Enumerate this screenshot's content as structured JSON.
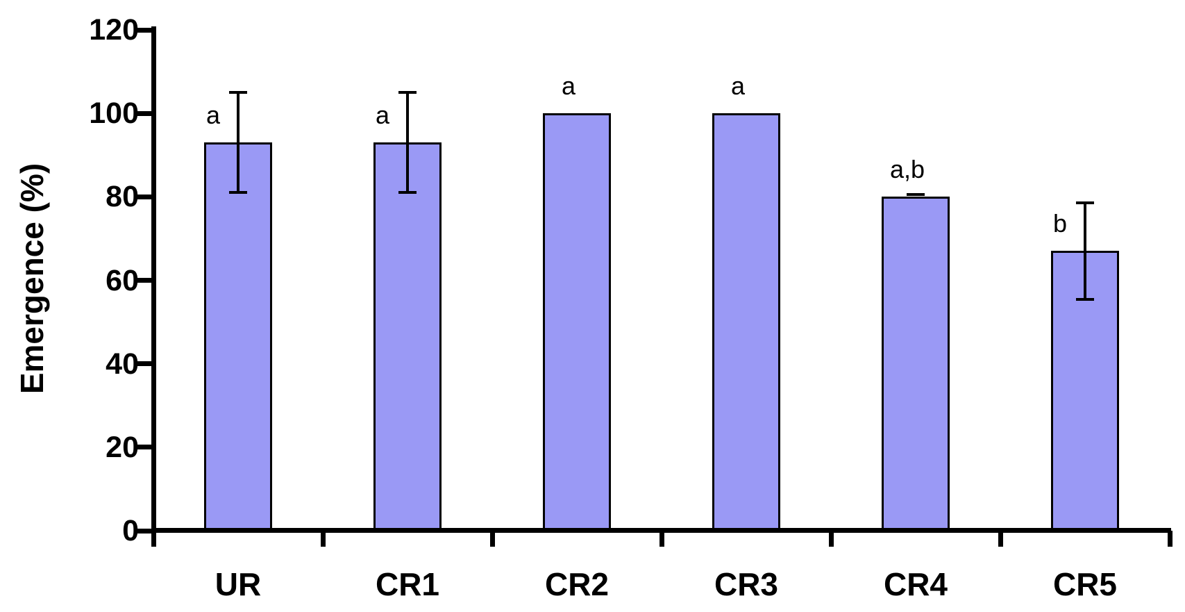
{
  "chart_data": {
    "type": "bar",
    "categories": [
      "UR",
      "CR1",
      "CR2",
      "CR3",
      "CR4",
      "CR5"
    ],
    "values": [
      93,
      93,
      100,
      100,
      80,
      67
    ],
    "errors": [
      12,
      12,
      0,
      0,
      0.5,
      11.5
    ],
    "sig_letters": [
      "a",
      "a",
      "a",
      "a",
      "a,b",
      "b"
    ],
    "title": "",
    "xlabel": "",
    "ylabel": "Emergence (%)",
    "ylim": [
      0,
      120
    ],
    "yticks": [
      0,
      20,
      40,
      60,
      80,
      100,
      120
    ],
    "grid": false,
    "legend": "none",
    "colors": {
      "bar_fill": "#9A99F5",
      "bar_border": "#000000",
      "axis": "#000000",
      "text": "#000000",
      "background": "#FFFFFF"
    }
  }
}
